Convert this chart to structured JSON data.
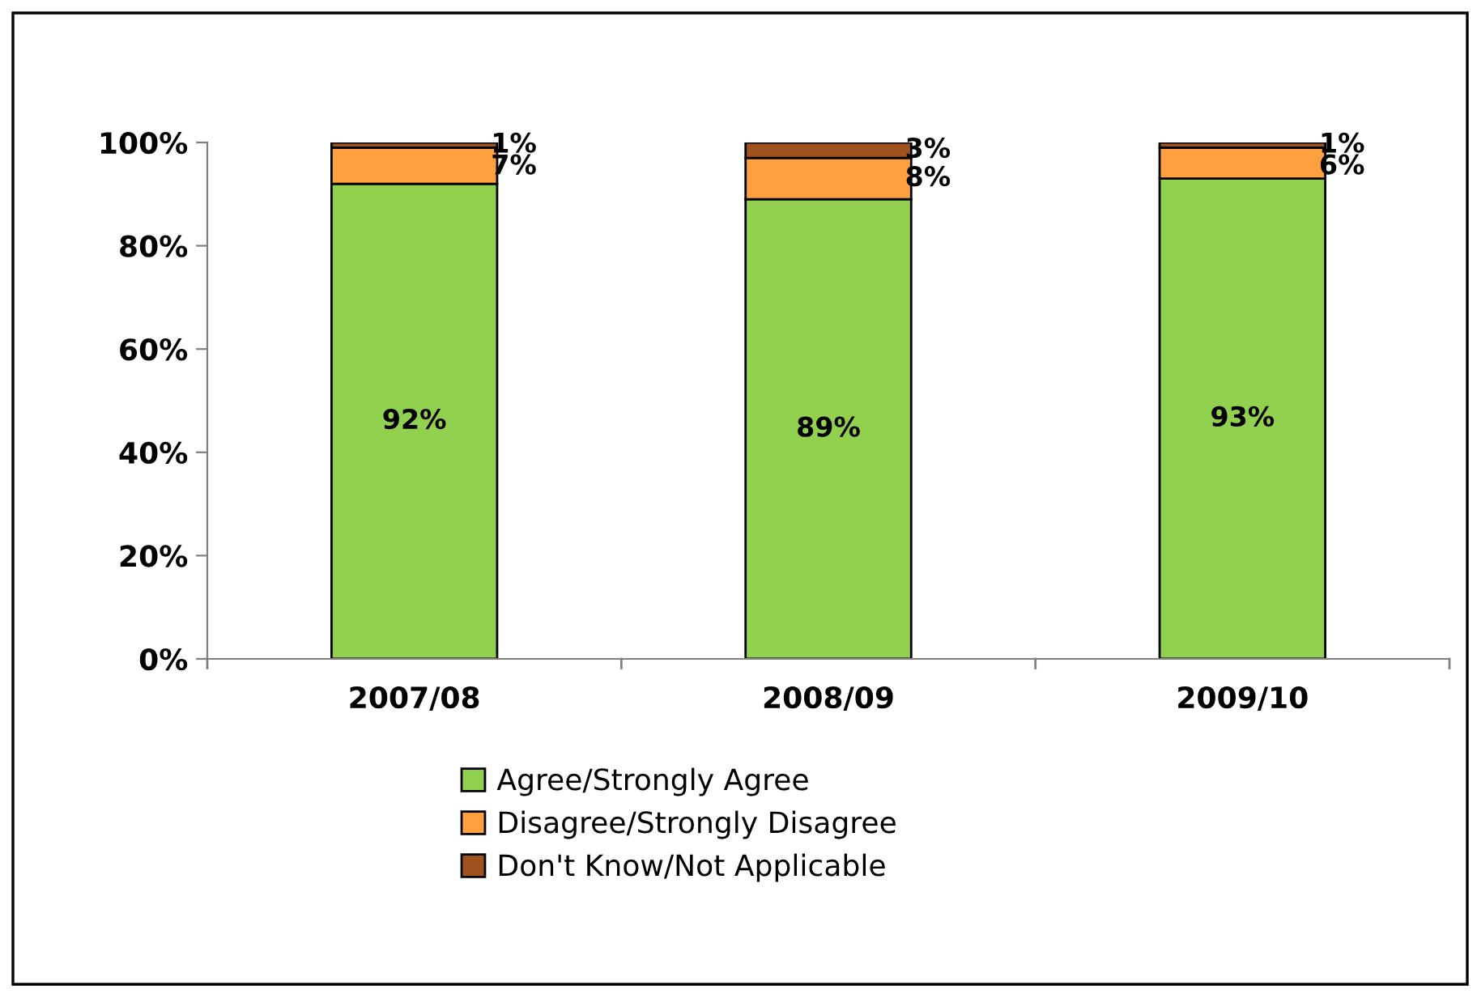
{
  "chart_data": {
    "type": "bar",
    "stacked": true,
    "categories": [
      "2007/08",
      "2008/09",
      "2009/10"
    ],
    "series": [
      {
        "name": "Agree/Strongly Agree",
        "color": "#92d050",
        "values": [
          92,
          89,
          93
        ],
        "value_labels": [
          "92%",
          "89%",
          "93%"
        ]
      },
      {
        "name": "Disagree/Strongly Disagree",
        "color": "#ffa040",
        "values": [
          7,
          8,
          6
        ],
        "value_labels": [
          "7%",
          "8%",
          "6%"
        ]
      },
      {
        "name": "Don't Know/Not Applicable",
        "color": "#a0521e",
        "values": [
          1,
          3,
          1
        ],
        "value_labels": [
          "1%",
          "3%",
          "1%"
        ]
      }
    ],
    "ylim": [
      0,
      100
    ],
    "yticks": [
      {
        "value": 0,
        "label": "0%"
      },
      {
        "value": 20,
        "label": "20%"
      },
      {
        "value": 40,
        "label": "40%"
      },
      {
        "value": 60,
        "label": "60%"
      },
      {
        "value": 80,
        "label": "80%"
      },
      {
        "value": 100,
        "label": "100%"
      }
    ],
    "grid": false,
    "legend": "bottom"
  }
}
